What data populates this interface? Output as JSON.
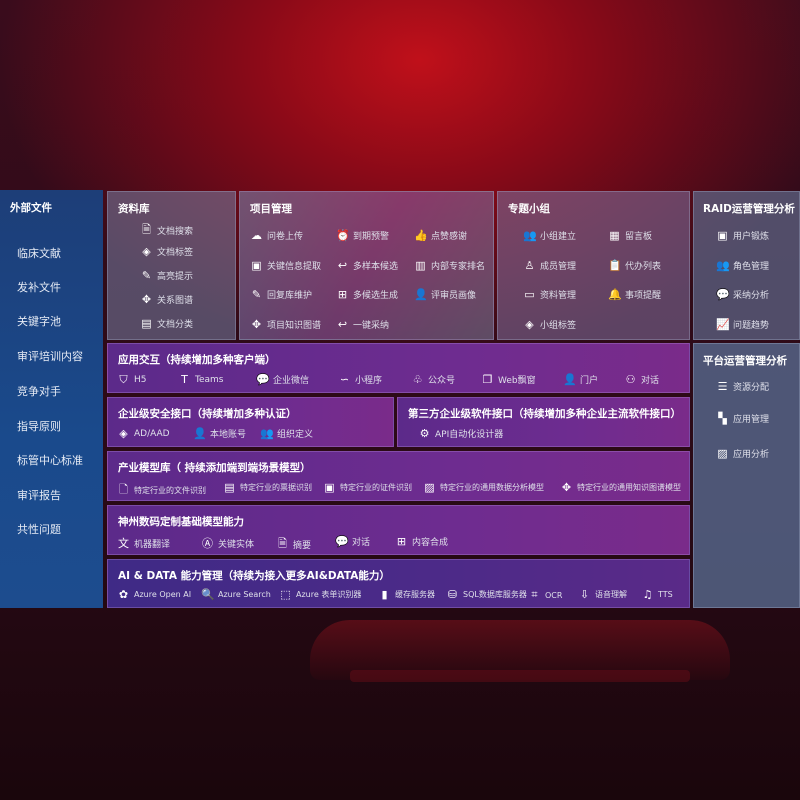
{
  "sidebar": {
    "title": "外部文件",
    "items": [
      "临床文献",
      "发补文件",
      "关键字池",
      "审评培训内容",
      "竞争对手",
      "指导原则",
      "标管中心标准",
      "审评报告",
      "共性问题"
    ]
  },
  "library": {
    "title": "资料库",
    "items": [
      {
        "icon": "doc-search-icon",
        "label": "文档搜索"
      },
      {
        "icon": "tag-icon",
        "label": "文档标签"
      },
      {
        "icon": "pen-icon",
        "label": "高亮提示"
      },
      {
        "icon": "graph-icon",
        "label": "关系图谱"
      },
      {
        "icon": "doc-category-icon",
        "label": "文档分类"
      }
    ]
  },
  "project": {
    "title": "项目管理",
    "items": [
      {
        "icon": "cloud-upload-icon",
        "label": "问卷上传"
      },
      {
        "icon": "alarm-icon",
        "label": "到期预警"
      },
      {
        "icon": "thumbs-up-icon",
        "label": "点赞感谢"
      },
      {
        "icon": "window-icon",
        "label": "关键信息提取"
      },
      {
        "icon": "reply-icon",
        "label": "多样本候选"
      },
      {
        "icon": "ranking-icon",
        "label": "内部专家排名"
      },
      {
        "icon": "edit-icon",
        "label": "回复库维护"
      },
      {
        "icon": "puzzle-icon",
        "label": "多候选生成"
      },
      {
        "icon": "user-icon",
        "label": "评审员画像"
      },
      {
        "icon": "graph-icon",
        "label": "项目知识图谱"
      },
      {
        "icon": "reply-icon",
        "label": "一键采纳"
      }
    ]
  },
  "group": {
    "title": "专题小组",
    "items": [
      {
        "icon": "users-icon",
        "label": "小组建立"
      },
      {
        "icon": "bbs-icon",
        "label": "留言板"
      },
      {
        "icon": "user-add-icon",
        "label": "成员管理"
      },
      {
        "icon": "clipboard-icon",
        "label": "代办列表"
      },
      {
        "icon": "folder-icon",
        "label": "资料管理"
      },
      {
        "icon": "bell-icon",
        "label": "事项提醒"
      },
      {
        "icon": "tag-icon",
        "label": "小组标签"
      }
    ]
  },
  "raid": {
    "title": "RAID运营管理分析",
    "items": [
      {
        "icon": "id-card-icon",
        "label": "用户锻炼"
      },
      {
        "icon": "users-icon",
        "label": "角色管理"
      },
      {
        "icon": "qa-icon",
        "label": "采纳分析"
      },
      {
        "icon": "trend-icon",
        "label": "问题趋势"
      }
    ]
  },
  "platform": {
    "title": "平台运营管理分析",
    "items": [
      {
        "icon": "checklist-icon",
        "label": "资源分配"
      },
      {
        "icon": "apps-icon",
        "label": "应用管理"
      },
      {
        "icon": "chart-icon",
        "label": "应用分析"
      }
    ]
  },
  "app": {
    "title": "应用交互（持续增加多种客户端）",
    "items": [
      {
        "icon": "html5-icon",
        "label": "H5"
      },
      {
        "icon": "teams-icon",
        "label": "Teams"
      },
      {
        "icon": "wechat-icon",
        "label": "企业微信"
      },
      {
        "icon": "miniprogram-icon",
        "label": "小程序"
      },
      {
        "icon": "public-account-icon",
        "label": "公众号"
      },
      {
        "icon": "window-icon",
        "label": "Web飘窗"
      },
      {
        "icon": "portal-icon",
        "label": "门户"
      },
      {
        "icon": "chat-icon",
        "label": "对话"
      }
    ]
  },
  "security": {
    "title": "企业级安全接口（持续增加多种认证）",
    "items": [
      {
        "icon": "aad-icon",
        "label": "AD/AAD"
      },
      {
        "icon": "account-icon",
        "label": "本地账号"
      },
      {
        "icon": "org-icon",
        "label": "组织定义"
      }
    ]
  },
  "third": {
    "title": "第三方企业级软件接口（持续增加多种企业主流软件接口）",
    "items": [
      {
        "icon": "gear-icon",
        "label": "API自动化设计器"
      }
    ]
  },
  "industry": {
    "title": "产业模型库（ 持续添加端到端场景模型）",
    "items": [
      {
        "icon": "file-icon",
        "label": "特定行业的文件识别"
      },
      {
        "icon": "receipt-icon",
        "label": "特定行业的票据识别"
      },
      {
        "icon": "id-card-icon",
        "label": "特定行业的证件识别"
      },
      {
        "icon": "image-icon",
        "label": "特定行业的通用数据分析模型"
      },
      {
        "icon": "graph-icon",
        "label": "特定行业的通用知识图谱模型"
      }
    ]
  },
  "base": {
    "title": "神州数码定制基础模型能力",
    "items": [
      {
        "icon": "translate-icon",
        "label": "机器翻译"
      },
      {
        "icon": "entity-icon",
        "label": "关键实体"
      },
      {
        "icon": "summary-icon",
        "label": "摘要"
      },
      {
        "icon": "chat-icon",
        "label": "对话"
      },
      {
        "icon": "compose-icon",
        "label": "内容合成"
      }
    ]
  },
  "ai": {
    "title": "AI & DATA 能力管理（持续为接入更多AI&DATA能力）",
    "items": [
      {
        "icon": "openai-icon",
        "label": "Azure Open AI"
      },
      {
        "icon": "search-icon",
        "label": "Azure Search"
      },
      {
        "icon": "form-icon",
        "label": "Azure 表单识别器"
      },
      {
        "icon": "cache-icon",
        "label": "缓存服务器"
      },
      {
        "icon": "sql-icon",
        "label": "SQL数据库服务器"
      },
      {
        "icon": "ocr-icon",
        "label": "OCR"
      },
      {
        "icon": "speech-icon",
        "label": "语音理解"
      },
      {
        "icon": "tts-icon",
        "label": "TTS"
      }
    ]
  }
}
